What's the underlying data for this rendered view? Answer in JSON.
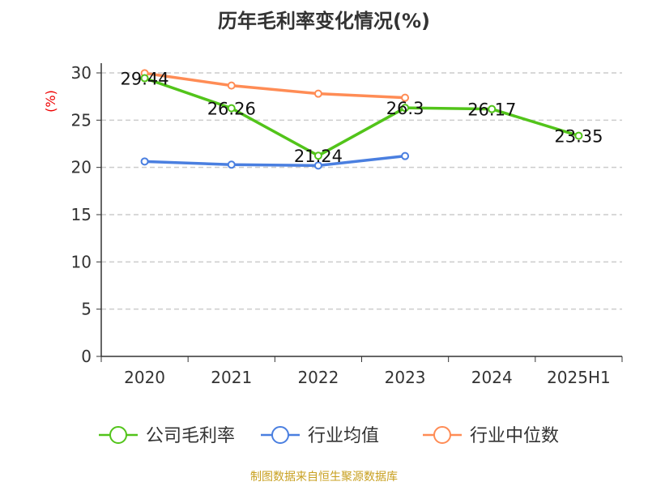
{
  "chart_data": {
    "type": "line",
    "title": "历年毛利率变化情况(%)",
    "ylabel": "(%)",
    "categories": [
      "2020",
      "2021",
      "2022",
      "2023",
      "2024",
      "2025H1"
    ],
    "ylim": [
      0,
      30
    ],
    "yticks": [
      0,
      5,
      10,
      15,
      20,
      25,
      30
    ],
    "grid": true,
    "legend_position": "bottom",
    "series": [
      {
        "name": "公司毛利率",
        "color": "#52c41a",
        "values": [
          29.44,
          26.26,
          21.24,
          26.3,
          26.17,
          23.35
        ],
        "labels": [
          "29.44",
          "26.26",
          "21.24",
          "26.3",
          "26.17",
          "23.35"
        ]
      },
      {
        "name": "行业均值",
        "color": "#4a7fe0",
        "values": [
          20.63,
          20.29,
          20.2,
          21.2,
          null,
          null
        ]
      },
      {
        "name": "行业中位数",
        "color": "#ff8c55",
        "values": [
          29.97,
          28.66,
          27.8,
          27.37,
          null,
          null
        ]
      }
    ]
  },
  "source": "制图数据来自恒生聚源数据库"
}
